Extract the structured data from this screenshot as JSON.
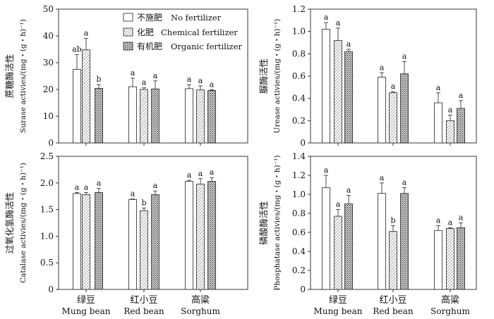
{
  "legend": {
    "items": [
      {
        "zh": "不施肥",
        "en": "No fertilizer",
        "pattern": "none"
      },
      {
        "zh": "化肥",
        "en": "Chemical fertilizer",
        "pattern": "hatch"
      },
      {
        "zh": "有机肥",
        "en": "Organic fertilizer",
        "pattern": "dots"
      }
    ]
  },
  "chart_data": [
    {
      "type": "bar",
      "panel": "top-left",
      "ylabel_zh": "蔗糖酶活性",
      "ylabel_en": "Surase activies/(mg・(g・h)⁻¹)",
      "ylim": [
        0,
        50
      ],
      "yticks": [
        0,
        10,
        20,
        30,
        40,
        50
      ],
      "tick_labels": [
        "0",
        "10",
        "20",
        "30",
        "40",
        "50"
      ],
      "categories": [
        "Mung bean",
        "Red bean",
        "Sorghum"
      ],
      "series": [
        {
          "name": "No fertilizer",
          "values": [
            27.5,
            21.0,
            20.3
          ],
          "errors": [
            5.5,
            3.2,
            1.5
          ],
          "letters": [
            "ab",
            "a",
            "a"
          ]
        },
        {
          "name": "Chemical fertilizer",
          "values": [
            34.8,
            20.0,
            19.8
          ],
          "errors": [
            4.3,
            0.6,
            1.5
          ],
          "letters": [
            "a",
            "a",
            "a"
          ]
        },
        {
          "name": "Organic fertilizer",
          "values": [
            20.4,
            20.2,
            19.6
          ],
          "errors": [
            1.4,
            3.0,
            0.3
          ],
          "letters": [
            "b",
            "a",
            "a"
          ]
        }
      ]
    },
    {
      "type": "bar",
      "panel": "top-right",
      "ylabel_zh": "脲酶活性",
      "ylabel_en": "Urease activies/(mg・(g・h)⁻¹)",
      "ylim": [
        0,
        1.2
      ],
      "yticks": [
        0,
        0.2,
        0.4,
        0.6,
        0.8,
        1.0,
        1.2
      ],
      "tick_labels": [
        "0",
        "0.2",
        "0.4",
        "0.6",
        "0.8",
        "1.0",
        "1.2"
      ],
      "categories": [
        "Mung bean",
        "Red bean",
        "Sorghum"
      ],
      "series": [
        {
          "name": "No fertilizer",
          "values": [
            1.02,
            0.59,
            0.36
          ],
          "errors": [
            0.06,
            0.04,
            0.09
          ],
          "letters": [
            "a",
            "a",
            "a"
          ]
        },
        {
          "name": "Chemical fertilizer",
          "values": [
            0.92,
            0.45,
            0.2
          ],
          "errors": [
            0.11,
            0.01,
            0.05
          ],
          "letters": [
            "a",
            "a",
            "a"
          ]
        },
        {
          "name": "Organic fertilizer",
          "values": [
            0.82,
            0.62,
            0.31
          ],
          "errors": [
            0.02,
            0.11,
            0.07
          ],
          "letters": [
            "a",
            "a",
            "a"
          ]
        }
      ]
    },
    {
      "type": "bar",
      "panel": "bottom-left",
      "ylabel_zh": "过氧化氢酶活性",
      "ylabel_en": "Catalase activies/(mg・(g・h)⁻¹)",
      "ylim": [
        0,
        2.5
      ],
      "yticks": [
        0,
        0.5,
        1.0,
        1.5,
        2.0,
        2.5
      ],
      "tick_labels": [
        "0",
        "0.5",
        "1.0",
        "1.5",
        "2.0",
        "2.5"
      ],
      "categories": [
        "Mung bean",
        "Red bean",
        "Sorghum"
      ],
      "series": [
        {
          "name": "No fertilizer",
          "values": [
            1.8,
            1.69,
            2.03
          ],
          "errors": [
            0.02,
            0.01,
            0.02
          ],
          "letters": [
            "a",
            "a",
            "a"
          ]
        },
        {
          "name": "Chemical fertilizer",
          "values": [
            1.78,
            1.48,
            1.98
          ],
          "errors": [
            0.04,
            0.05,
            0.1
          ],
          "letters": [
            "a",
            "b",
            "a"
          ]
        },
        {
          "name": "Organic fertilizer",
          "values": [
            1.82,
            1.78,
            2.03
          ],
          "errors": [
            0.08,
            0.07,
            0.07
          ],
          "letters": [
            "a",
            "a",
            "a"
          ]
        }
      ],
      "x_labels_zh": [
        "绿豆",
        "红小豆",
        "高粱"
      ],
      "x_labels_en": [
        "Mung bean",
        "Red bean",
        "Sorghum"
      ]
    },
    {
      "type": "bar",
      "panel": "bottom-right",
      "ylabel_zh": "磷酸酶活性",
      "ylabel_en": "Phosphatase activies/(mg・(g・h)⁻¹)",
      "ylim": [
        0,
        1.4
      ],
      "yticks": [
        0,
        0.2,
        0.4,
        0.6,
        0.8,
        1.0,
        1.2,
        1.4
      ],
      "tick_labels": [
        "0",
        "0.2",
        "0.4",
        "0.6",
        "0.8",
        "1.0",
        "1.2",
        "1.4"
      ],
      "categories": [
        "Mung bean",
        "Red bean",
        "Sorghum"
      ],
      "series": [
        {
          "name": "No fertilizer",
          "values": [
            1.07,
            1.01,
            0.62
          ],
          "errors": [
            0.13,
            0.11,
            0.05
          ],
          "letters": [
            "a",
            "a",
            "a"
          ]
        },
        {
          "name": "Chemical fertilizer",
          "values": [
            0.77,
            0.61,
            0.64
          ],
          "errors": [
            0.07,
            0.06,
            0.01
          ],
          "letters": [
            "a",
            "b",
            "a"
          ]
        },
        {
          "name": "Organic fertilizer",
          "values": [
            0.9,
            1.01,
            0.65
          ],
          "errors": [
            0.09,
            0.06,
            0.05
          ],
          "letters": [
            "a",
            "a",
            "a"
          ]
        }
      ],
      "x_labels_zh": [
        "绿豆",
        "红小豆",
        "高粱"
      ],
      "x_labels_en": [
        "Mung bean",
        "Red bean",
        "Sorghum"
      ]
    }
  ]
}
